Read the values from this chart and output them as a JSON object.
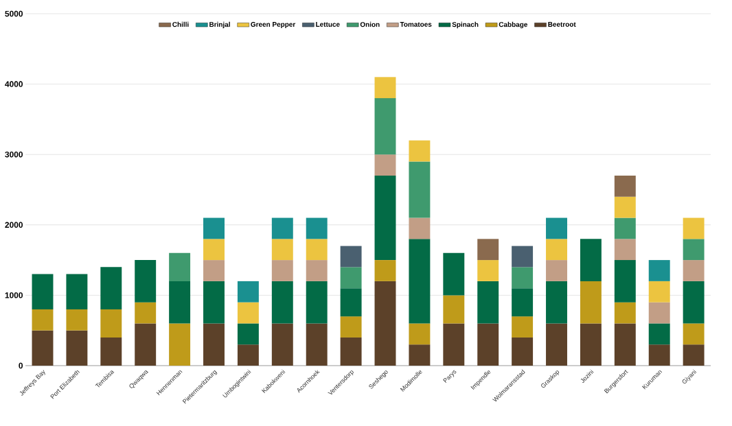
{
  "chart_data": {
    "type": "bar",
    "stacked": true,
    "categories": [
      "Jeffreys Bay",
      "Port Elizabeth",
      "Tembisa",
      "Qwaqwa",
      "Hennenman",
      "Pietermaritzburg",
      "Umbogintwini",
      "Kabokweni",
      "Acornhoek",
      "Ventersdorp",
      "Seshego",
      "Modimolle",
      "Parys",
      "Impendle",
      "Wolmaransstad",
      "Graskop",
      "Jozini",
      "Burgersfort",
      "Kuruman",
      "Giyani"
    ],
    "series": [
      {
        "name": "Beetroot",
        "color": "#5c4129",
        "values": [
          500,
          500,
          400,
          600,
          null,
          600,
          300,
          600,
          600,
          400,
          1200,
          300,
          600,
          600,
          400,
          600,
          600,
          600,
          300,
          300
        ]
      },
      {
        "name": "Cabbage",
        "color": "#bf9b1a",
        "values": [
          300,
          300,
          400,
          300,
          600,
          null,
          null,
          null,
          null,
          300,
          300,
          300,
          400,
          null,
          300,
          null,
          600,
          300,
          null,
          300
        ]
      },
      {
        "name": "Spinach",
        "color": "#036b46",
        "values": [
          500,
          500,
          600,
          600,
          600,
          600,
          300,
          600,
          600,
          400,
          1200,
          1200,
          600,
          600,
          400,
          600,
          600,
          600,
          300,
          600
        ]
      },
      {
        "name": "Tomatoes",
        "color": "#c29e86",
        "values": [
          null,
          null,
          null,
          null,
          null,
          300,
          null,
          300,
          300,
          null,
          300,
          300,
          null,
          null,
          null,
          300,
          null,
          300,
          300,
          300
        ]
      },
      {
        "name": "Onion",
        "color": "#3f9a6e",
        "values": [
          null,
          null,
          null,
          null,
          400,
          null,
          null,
          null,
          null,
          300,
          800,
          800,
          null,
          null,
          300,
          null,
          null,
          300,
          null,
          300
        ]
      },
      {
        "name": "Lettuce",
        "color": "#4a6070",
        "values": [
          null,
          null,
          null,
          null,
          null,
          null,
          null,
          null,
          null,
          300,
          null,
          null,
          null,
          null,
          300,
          null,
          null,
          null,
          null,
          null
        ]
      },
      {
        "name": "Green Pepper",
        "color": "#ecc440",
        "values": [
          null,
          null,
          null,
          null,
          null,
          300,
          300,
          300,
          300,
          null,
          300,
          300,
          null,
          300,
          null,
          300,
          null,
          300,
          300,
          300
        ]
      },
      {
        "name": "Brinjal",
        "color": "#1a9090",
        "values": [
          null,
          null,
          null,
          null,
          null,
          300,
          300,
          300,
          300,
          null,
          null,
          null,
          null,
          null,
          null,
          300,
          null,
          null,
          300,
          null
        ]
      },
      {
        "name": "Chilli",
        "color": "#8a6a4e",
        "values": [
          null,
          null,
          null,
          null,
          null,
          null,
          null,
          null,
          null,
          null,
          null,
          null,
          null,
          300,
          null,
          null,
          null,
          300,
          null,
          null
        ]
      }
    ],
    "ylim": [
      0,
      5000
    ],
    "yticks": [
      0,
      1000,
      2000,
      3000,
      4000,
      5000
    ],
    "grid": "y",
    "legend": "top"
  }
}
